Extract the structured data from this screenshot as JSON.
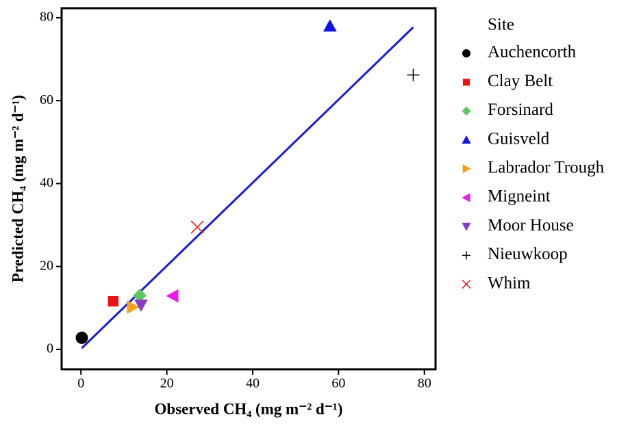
{
  "chart_data": {
    "type": "scatter",
    "x_label": "Observed CH₄ (mg m⁻² d⁻¹)",
    "y_label": "Predicted CH₄ (mg m⁻² d⁻¹)",
    "legend_title": "Site",
    "legend_position": "right",
    "xlim": [
      -4.5,
      82.6
    ],
    "ylim": [
      -4.8,
      82.3
    ],
    "xticks": [
      0,
      20,
      40,
      60,
      80
    ],
    "yticks": [
      0,
      20,
      40,
      60,
      80
    ],
    "fit_line": {
      "color": "#1a1adc",
      "x": [
        0.2,
        77.4
      ],
      "y": [
        0.3,
        77.7
      ]
    },
    "series": [
      {
        "name": "Auchencorth",
        "color": "#000000",
        "marker": "circle",
        "x": [
          0.2
        ],
        "y": [
          2.8
        ]
      },
      {
        "name": "Clay Belt",
        "color": "#ee1111",
        "marker": "square",
        "x": [
          7.5
        ],
        "y": [
          11.6
        ]
      },
      {
        "name": "Forsinard",
        "color": "#5fc65f",
        "marker": "diamond",
        "x": [
          13.7
        ],
        "y": [
          13.0
        ]
      },
      {
        "name": "Guisveld",
        "color": "#1111ee",
        "marker": "triangle-up",
        "x": [
          58.0
        ],
        "y": [
          78.0
        ]
      },
      {
        "name": "Labrador Trough",
        "color": "#f5a21a",
        "marker": "triangle-right",
        "x": [
          12.0
        ],
        "y": [
          10.2
        ]
      },
      {
        "name": "Migneint",
        "color": "#f01af0",
        "marker": "triangle-left",
        "x": [
          21.4
        ],
        "y": [
          12.9
        ]
      },
      {
        "name": "Moor House",
        "color": "#8a3cc8",
        "marker": "triangle-down",
        "x": [
          14.0
        ],
        "y": [
          10.7
        ]
      },
      {
        "name": "Nieuwkoop",
        "color": "#000000",
        "marker": "plus",
        "x": [
          77.4
        ],
        "y": [
          66.2
        ]
      },
      {
        "name": "Whim",
        "color": "#ee1111",
        "marker": "x",
        "x": [
          27.1
        ],
        "y": [
          29.5
        ]
      }
    ]
  }
}
